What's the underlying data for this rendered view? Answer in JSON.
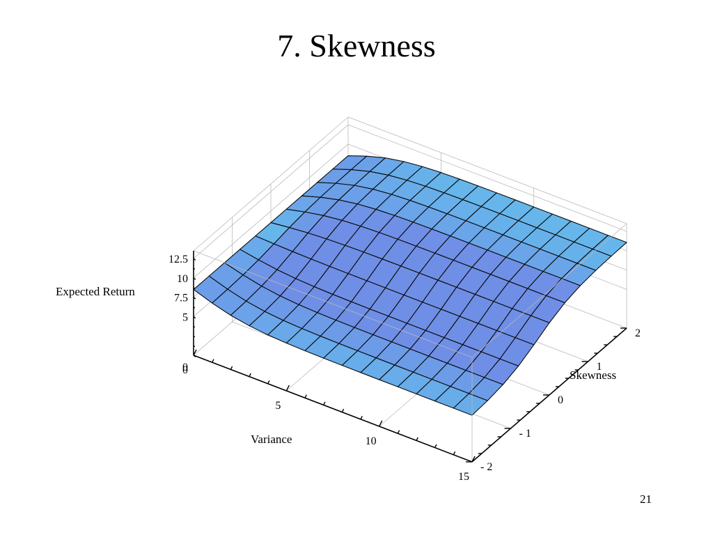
{
  "slide": {
    "title": "7. Skewness",
    "page_number": "21"
  },
  "chart_data": {
    "type": "surface",
    "title": "",
    "xlabel": "Variance",
    "ylabel": "Skewness",
    "zlabel": "Expected Return",
    "xlim": [
      0,
      15
    ],
    "ylim": [
      -2,
      2
    ],
    "zlim": [
      0,
      13.5
    ],
    "x_ticks": [
      0,
      5,
      10,
      15
    ],
    "x_tick_labels": [
      "0",
      "5",
      "10",
      "15"
    ],
    "y_ticks": [
      -2,
      -1,
      0,
      1,
      2
    ],
    "y_tick_labels": [
      "- 2",
      "- 1",
      "0",
      "1",
      "2"
    ],
    "z_ticks": [
      0,
      5,
      7.5,
      10,
      12.5
    ],
    "z_tick_labels": [
      "0",
      "5",
      "7.5",
      "10",
      "12.5"
    ],
    "x_grid": [
      0,
      1,
      2,
      3,
      4,
      5,
      6,
      7,
      8,
      9,
      10,
      11,
      12,
      13,
      14,
      15
    ],
    "y_grid": [
      -2,
      -1.6,
      -1.2,
      -0.8,
      -0.4,
      0,
      0.4,
      0.8,
      1.2,
      1.6,
      2
    ],
    "z_function": "expected_return = 8.5 + 2.6 * tanh(0.35*variance) * tanh(1.1*(skewness+0.3))",
    "surface_color": "#62c8ee",
    "surface_shade_color": "#6f8fe6",
    "grid": true
  }
}
